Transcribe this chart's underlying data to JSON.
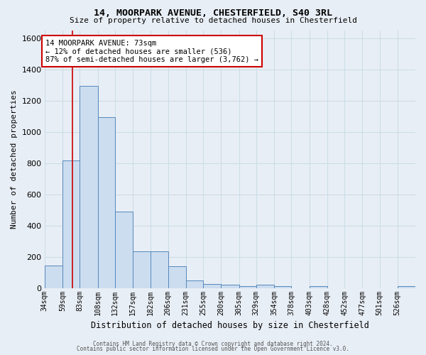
{
  "title1": "14, MOORPARK AVENUE, CHESTERFIELD, S40 3RL",
  "title2": "Size of property relative to detached houses in Chesterfield",
  "xlabel": "Distribution of detached houses by size in Chesterfield",
  "ylabel": "Number of detached properties",
  "footer1": "Contains HM Land Registry data © Crown copyright and database right 2024.",
  "footer2": "Contains public sector information licensed under the Open Government Licence v3.0.",
  "bin_labels": [
    "34sqm",
    "59sqm",
    "83sqm",
    "108sqm",
    "132sqm",
    "157sqm",
    "182sqm",
    "206sqm",
    "231sqm",
    "255sqm",
    "280sqm",
    "305sqm",
    "329sqm",
    "354sqm",
    "378sqm",
    "403sqm",
    "428sqm",
    "452sqm",
    "477sqm",
    "501sqm",
    "526sqm"
  ],
  "bar_values": [
    145,
    815,
    1295,
    1095,
    490,
    235,
    235,
    140,
    47,
    25,
    22,
    12,
    20,
    12,
    0,
    12,
    0,
    0,
    0,
    0,
    10
  ],
  "bar_color": "#ccddf0",
  "bar_edge_color": "#5588bb",
  "property_line_x": 73,
  "bin_edges": [
    34,
    59,
    83,
    108,
    132,
    157,
    182,
    206,
    231,
    255,
    280,
    305,
    329,
    354,
    378,
    403,
    428,
    452,
    477,
    501,
    526,
    551
  ],
  "annotation_text": "14 MOORPARK AVENUE: 73sqm\n← 12% of detached houses are smaller (536)\n87% of semi-detached houses are larger (3,762) →",
  "annotation_box_color": "#ffffff",
  "annotation_box_edge": "#cc0000",
  "red_line_color": "#cc0000",
  "ylim": [
    0,
    1650
  ],
  "yticks": [
    0,
    200,
    400,
    600,
    800,
    1000,
    1200,
    1400,
    1600
  ],
  "grid_color": "#ccdde8",
  "background_color": "#e8eef5"
}
